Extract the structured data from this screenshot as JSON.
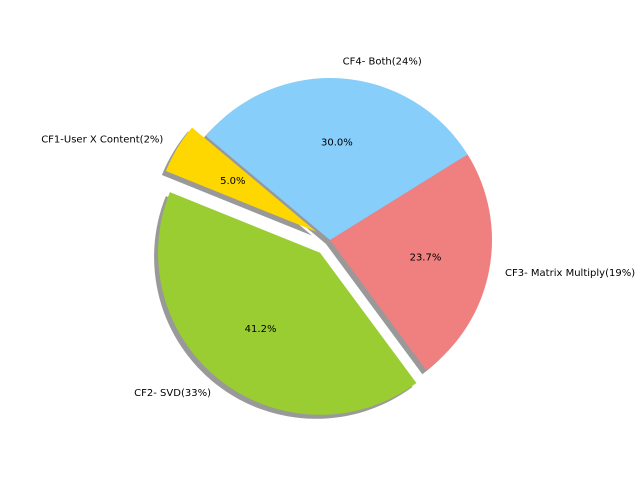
{
  "chart_data": {
    "type": "pie",
    "categories": [
      "CF1-User X Content(2%)",
      "CF2- SVD(33%)",
      "CF3- Matrix Multiply(19%)",
      "CF4- Both(24%)"
    ],
    "values": [
      5.0,
      41.2,
      23.7,
      30.0
    ],
    "percent_labels": [
      "5.0%",
      "41.2%",
      "23.7%",
      "30.0%"
    ],
    "colors": [
      "#FFD700",
      "#9ACD32",
      "#F08080",
      "#87CEFA"
    ],
    "exploded": [
      "CF1-User X Content(2%)",
      "CF2- SVD(33%)"
    ],
    "shadow": true,
    "start_angle_deg": 140,
    "direction": "counterclockwise"
  }
}
